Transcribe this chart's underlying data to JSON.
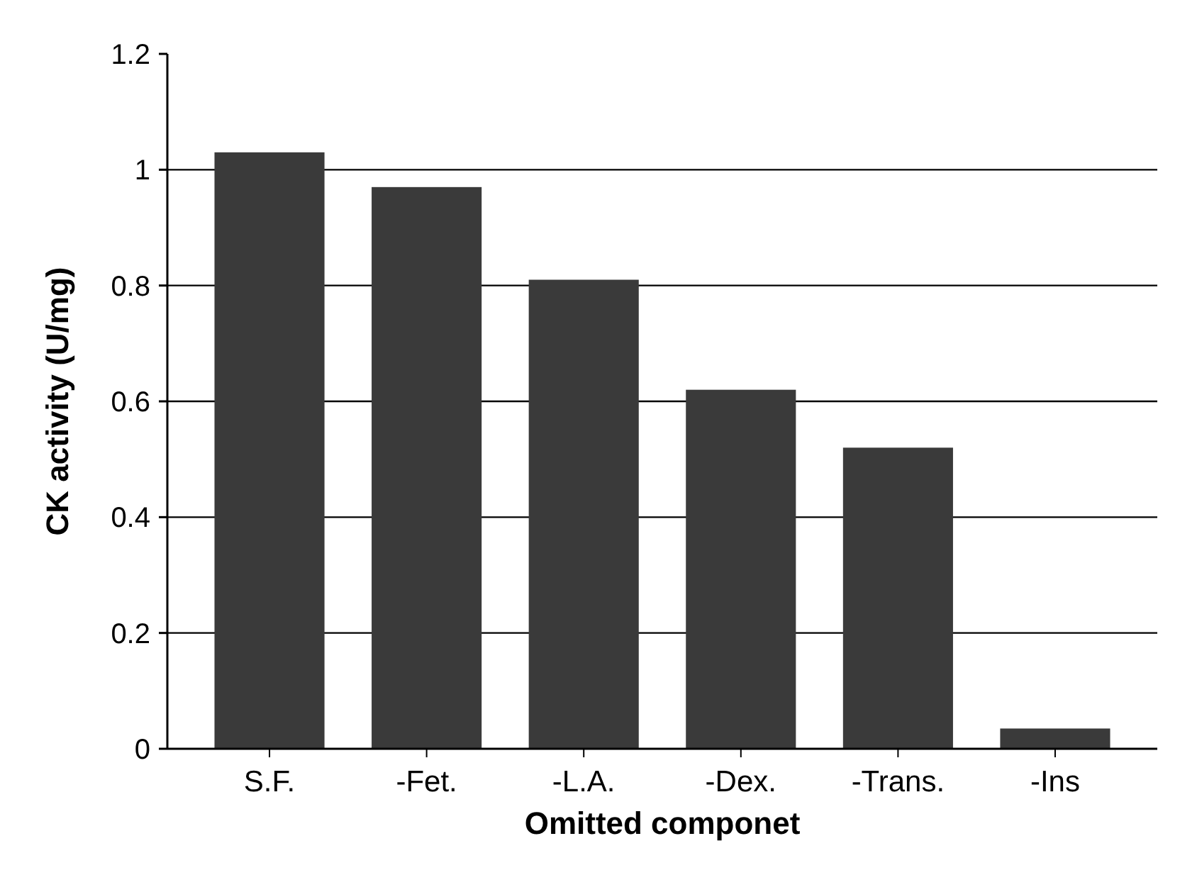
{
  "chart_data": {
    "type": "bar",
    "xlabel": "Omitted componet",
    "ylabel": "CK activity (U/mg)",
    "categories": [
      "S.F.",
      "-Fet.",
      "-L.A.",
      "-Dex.",
      "-Trans.",
      "-Ins"
    ],
    "values": [
      1.03,
      0.97,
      0.81,
      0.62,
      0.52,
      0.035
    ],
    "color": "#3a3a3a",
    "ylim": [
      0,
      1.2
    ],
    "yticks": [
      0,
      0.2,
      0.4,
      0.6,
      0.8,
      1,
      1.2
    ],
    "grid": "y"
  }
}
